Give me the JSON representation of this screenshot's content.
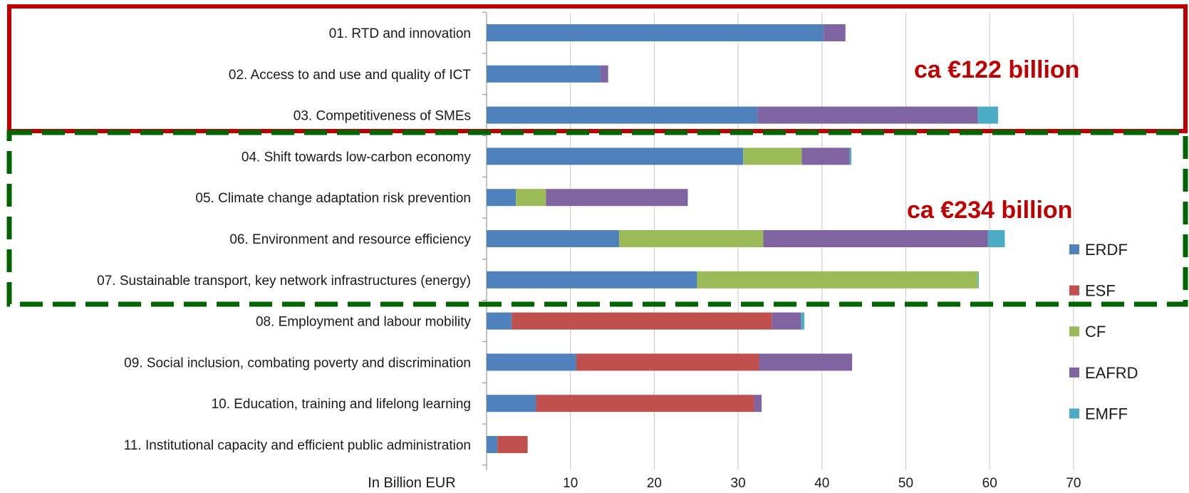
{
  "chart_data": {
    "type": "bar",
    "orientation": "horizontal",
    "stacked": true,
    "categories": [
      "01. RTD and innovation",
      "02. Access to and use and quality of ICT",
      "03. Competitiveness of SMEs",
      "04. Shift towards low-carbon economy",
      "05. Climate change adaptation risk prevention",
      "06. Environment and resource efficiency",
      "07. Sustainable transport, key network infrastructures (energy)",
      "08. Employment and labour mobility",
      "09. Social inclusion, combating poverty and discrimination",
      "10. Education, training and lifelong learning",
      "11. Institutional capacity and efficient public administration"
    ],
    "series": [
      {
        "name": "ERDF",
        "color": "#4f81bd",
        "values": [
          40.2,
          13.6,
          32.3,
          30.6,
          3.5,
          15.8,
          25.1,
          3.0,
          10.7,
          5.9,
          1.3
        ]
      },
      {
        "name": "ESF",
        "color": "#c0504d",
        "values": [
          0,
          0,
          0,
          0,
          0,
          0,
          0,
          31.0,
          21.8,
          26.0,
          3.6
        ]
      },
      {
        "name": "CF",
        "color": "#9bbb59",
        "values": [
          0,
          0,
          0,
          7.0,
          3.6,
          17.2,
          33.5,
          0,
          0,
          0,
          0
        ]
      },
      {
        "name": "EAFRD",
        "color": "#8064a2",
        "values": [
          2.6,
          0.9,
          26.3,
          5.7,
          16.9,
          26.8,
          0,
          3.5,
          11.1,
          0.9,
          0
        ]
      },
      {
        "name": "EMFF",
        "color": "#4bacc6",
        "values": [
          0,
          0,
          2.4,
          0.2,
          0,
          2.0,
          0.1,
          0.4,
          0,
          0,
          0
        ]
      }
    ],
    "xlabel": "In Billion EUR",
    "x_ticks": [
      "10",
      "20",
      "30",
      "40",
      "50",
      "60",
      "70"
    ],
    "xlim": [
      0,
      70
    ],
    "grid": true,
    "legend_position": "right",
    "annotations": [
      {
        "text": "ca €122 billion",
        "color": "#c00000",
        "group": [
          0,
          2
        ],
        "box_color": "#c00000",
        "box_style": "solid"
      },
      {
        "text": "ca €234 billion",
        "color": "#c00000",
        "group": [
          3,
          6
        ],
        "box_color": "#006400",
        "box_style": "dashed"
      }
    ]
  }
}
